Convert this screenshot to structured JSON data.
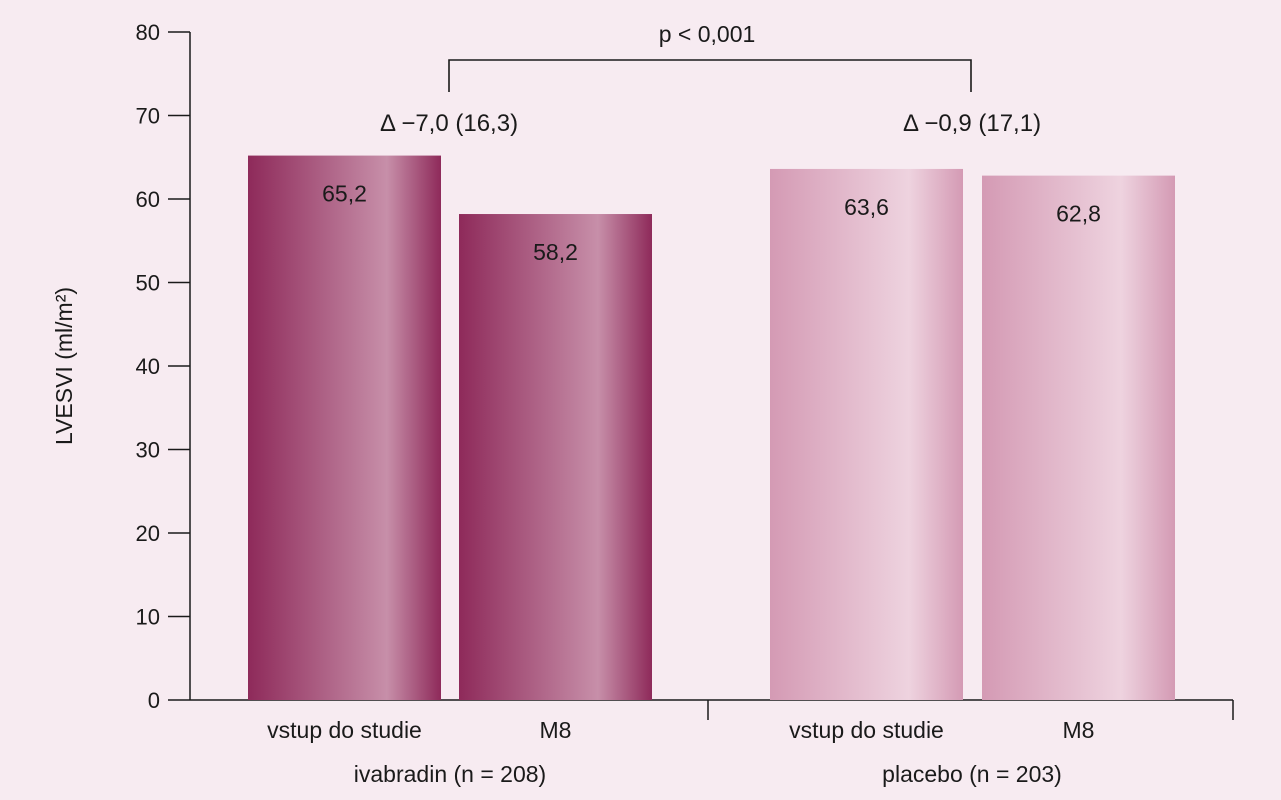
{
  "chart_data": {
    "type": "bar",
    "ylabel": "LVESVI (ml/m²)",
    "ylim": [
      0,
      80
    ],
    "yticks": [
      0,
      10,
      20,
      30,
      40,
      50,
      60,
      70,
      80
    ],
    "grid": false,
    "groups": [
      {
        "name": "ivabradin (n = 208)",
        "color": "#8e2a5a",
        "annotation": "Δ −7,0 (16,3)",
        "bars": [
          {
            "category": "vstup do studie",
            "value": 65.2,
            "label": "65,2"
          },
          {
            "category": "M8",
            "value": 58.2,
            "label": "58,2"
          }
        ]
      },
      {
        "name": "placebo (n = 203)",
        "color": "#d49ab4",
        "annotation": "Δ −0,9 (17,1)",
        "bars": [
          {
            "category": "vstup do studie",
            "value": 63.6,
            "label": "63,6"
          },
          {
            "category": "M8",
            "value": 62.8,
            "label": "62,8"
          }
        ]
      }
    ],
    "significance": "p < 0,001"
  }
}
